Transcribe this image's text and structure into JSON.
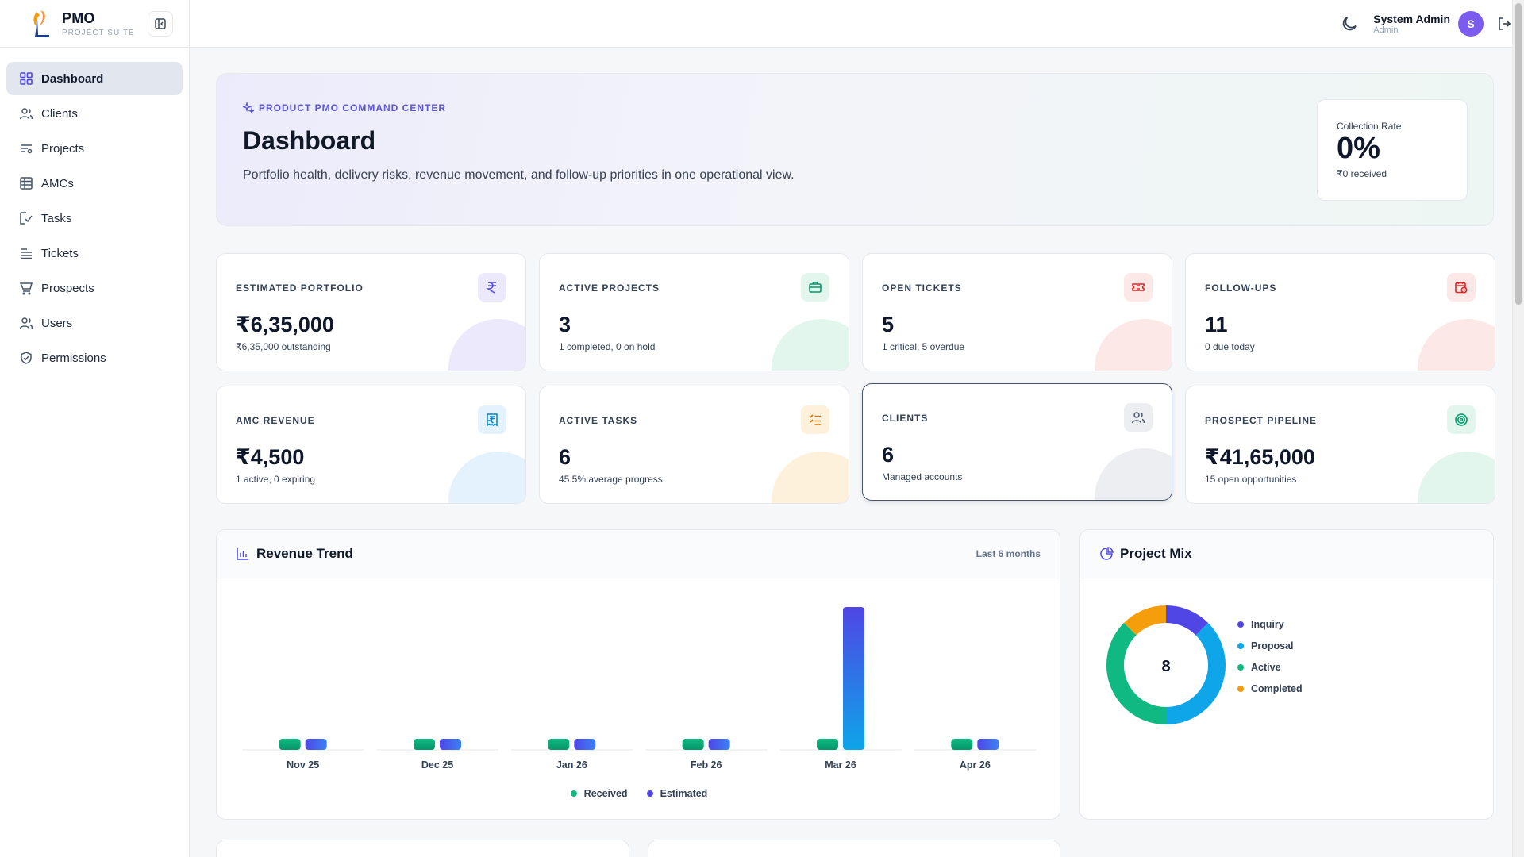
{
  "brand": {
    "name": "PMO",
    "subtitle": "PROJECT SUITE"
  },
  "sidebar": {
    "items": [
      {
        "label": "Dashboard",
        "icon": "dashboard-grid-icon",
        "active": true
      },
      {
        "label": "Clients",
        "icon": "users-icon"
      },
      {
        "label": "Projects",
        "icon": "projects-list-icon"
      },
      {
        "label": "AMCs",
        "icon": "table-icon"
      },
      {
        "label": "Tasks",
        "icon": "checklist-icon"
      },
      {
        "label": "Tickets",
        "icon": "tickets-icon"
      },
      {
        "label": "Prospects",
        "icon": "filter-cart-icon"
      },
      {
        "label": "Users",
        "icon": "users-icon"
      },
      {
        "label": "Permissions",
        "icon": "shield-check-icon"
      }
    ]
  },
  "topbar": {
    "user_name": "System Admin",
    "user_role": "Admin",
    "avatar_initial": "S"
  },
  "hero": {
    "tag": "PRODUCT PMO COMMAND CENTER",
    "title": "Dashboard",
    "description": "Portfolio health, delivery risks, revenue movement, and follow-up priorities in one operational view.",
    "collection_rate": {
      "label": "Collection Rate",
      "value": "0%",
      "sub": "₹0 received"
    }
  },
  "stats": [
    {
      "label": "ESTIMATED PORTFOLIO",
      "value": "₹6,35,000",
      "sub": "₹6,35,000 outstanding",
      "icon": "rupee-icon",
      "accent": "#5b54d6"
    },
    {
      "label": "ACTIVE PROJECTS",
      "value": "3",
      "sub": "1 completed, 0 on hold",
      "icon": "briefcase-icon",
      "accent": "#10b981"
    },
    {
      "label": "OPEN TICKETS",
      "value": "5",
      "sub": "1 critical, 5 overdue",
      "icon": "ticket-icon",
      "accent": "#ef4444"
    },
    {
      "label": "FOLLOW-UPS",
      "value": "11",
      "sub": "0 due today",
      "icon": "calendar-clock-icon",
      "accent": "#ef4444"
    },
    {
      "label": "AMC REVENUE",
      "value": "₹4,500",
      "sub": "1 active, 0 expiring",
      "icon": "receipt-rupee-icon",
      "accent": "#0ea5e9"
    },
    {
      "label": "ACTIVE TASKS",
      "value": "6",
      "sub": "45.5% average progress",
      "icon": "list-checks-icon",
      "accent": "#f59e0b"
    },
    {
      "label": "CLIENTS",
      "value": "6",
      "sub": "Managed accounts",
      "icon": "users-icon",
      "accent": "#475569"
    },
    {
      "label": "PROSPECT PIPELINE",
      "value": "₹41,65,000",
      "sub": "15 open opportunities",
      "icon": "target-icon",
      "accent": "#10b981"
    }
  ],
  "revenue_panel": {
    "title": "Revenue Trend",
    "meta": "Last 6 months"
  },
  "mix_panel": {
    "title": "Project Mix",
    "total": "8"
  },
  "chart_data": [
    {
      "type": "bar",
      "categories": [
        "Nov 25",
        "Dec 25",
        "Jan 26",
        "Feb 26",
        "Mar 26",
        "Apr 26"
      ],
      "series": [
        {
          "name": "Received",
          "values": [
            0,
            0,
            0,
            0,
            0,
            0
          ],
          "color": "#10b981"
        },
        {
          "name": "Estimated",
          "values": [
            0,
            0,
            0,
            0,
            635000,
            0
          ],
          "color": "#4f46e5"
        }
      ]
    },
    {
      "type": "pie",
      "categories": [
        "Inquiry",
        "Proposal",
        "Active",
        "Completed"
      ],
      "values": [
        1,
        3,
        3,
        1
      ],
      "colors": [
        "#4f46e5",
        "#0ea5e9",
        "#10b981",
        "#f59e0b"
      ]
    }
  ]
}
